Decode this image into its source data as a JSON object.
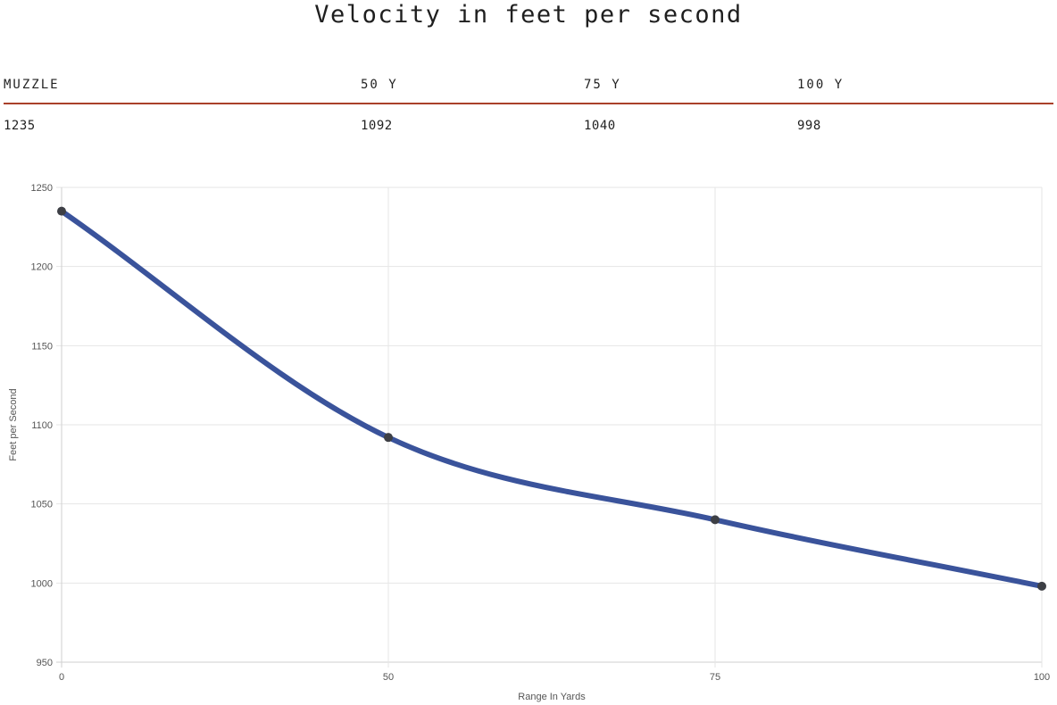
{
  "title": "Velocity in feet per second",
  "table": {
    "headers": [
      "MUZZLE",
      "50 Y",
      "75 Y",
      "100 Y"
    ],
    "values": [
      "1235",
      "1092",
      "1040",
      "998"
    ]
  },
  "chart_data": {
    "type": "line",
    "x": [
      0,
      50,
      75,
      100
    ],
    "x_tick_labels": [
      "0",
      "50",
      "75",
      "100"
    ],
    "series": [
      {
        "values": [
          1235,
          1092,
          1040,
          998
        ],
        "color": "#3a539b",
        "marker_color": "#3d3f45"
      }
    ],
    "xlabel": "Range In Yards",
    "ylabel": "Feet per Second",
    "xlim": [
      0,
      100
    ],
    "ylim": [
      950,
      1250
    ],
    "y_ticks": [
      950,
      1000,
      1050,
      1100,
      1150,
      1200,
      1250
    ],
    "x_scale": "category",
    "grid": true
  }
}
